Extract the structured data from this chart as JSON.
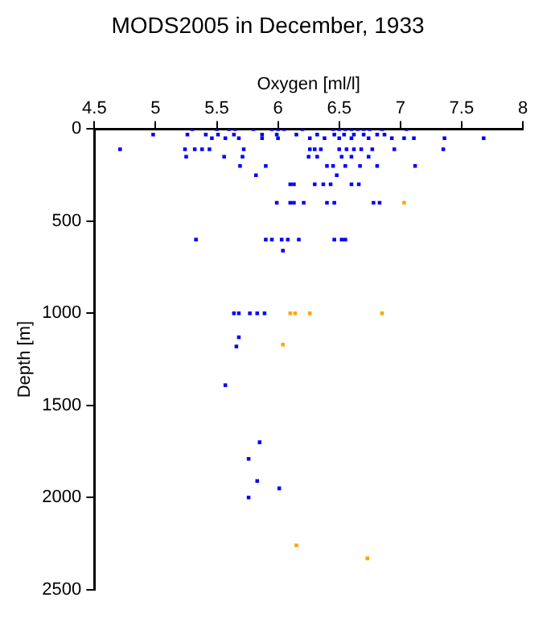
{
  "chart_data": {
    "type": "scatter",
    "title": "MODS2005 in December, 1933",
    "xlabel": "Oxygen [ml/l]",
    "ylabel": "Depth [m]",
    "xlim": [
      4.5,
      8
    ],
    "xticks": [
      4.5,
      5,
      5.5,
      6,
      6.5,
      7,
      7.5,
      8
    ],
    "ylim": [
      2500,
      0
    ],
    "yticks": [
      0,
      500,
      1000,
      1500,
      2000,
      2500
    ],
    "grid": false,
    "legend": false,
    "marker": "square",
    "series": [
      {
        "color": "#0000ff",
        "x": [
          5.3,
          5.5,
          5.6,
          5.65,
          5.8,
          5.95,
          6.0,
          6.05,
          6.2,
          6.45,
          6.5,
          6.55,
          6.6,
          6.65,
          6.7,
          6.75,
          6.85,
          7.05,
          4.98,
          5.26,
          5.41,
          5.51,
          5.64,
          5.87,
          5.99,
          6.15,
          6.32,
          6.46,
          6.54,
          6.62,
          6.7,
          6.81,
          6.87,
          5.46,
          5.57,
          5.68,
          5.87,
          6.0,
          6.26,
          6.38,
          6.5,
          6.6,
          6.74,
          6.93,
          7.03,
          7.11,
          7.36,
          7.68,
          4.71,
          5.24,
          5.32,
          5.38,
          5.44,
          5.72,
          6.26,
          6.3,
          6.35,
          6.5,
          6.56,
          6.62,
          6.68,
          6.77,
          6.95,
          7.35,
          5.25,
          5.56,
          5.71,
          6.25,
          6.32,
          6.52,
          6.6,
          6.74,
          5.69,
          5.9,
          6.4,
          6.45,
          6.55,
          6.67,
          6.81,
          7.12,
          5.82,
          6.48,
          6.1,
          6.13,
          6.3,
          6.37,
          6.43,
          6.6,
          6.66,
          5.99,
          6.1,
          6.13,
          6.21,
          6.4,
          6.46,
          6.78,
          6.83,
          5.33,
          5.9,
          5.95,
          6.03,
          6.08,
          6.17,
          6.46,
          6.52,
          6.55,
          6.04,
          5.64,
          5.68,
          5.77,
          5.83,
          5.89,
          5.68,
          5.66,
          5.57,
          5.85,
          5.76,
          5.83,
          6.01,
          5.76
        ],
        "values": [
          0,
          0,
          0,
          0,
          0,
          0,
          0,
          0,
          0,
          0,
          0,
          0,
          0,
          0,
          0,
          0,
          0,
          0,
          30,
          30,
          30,
          30,
          30,
          30,
          30,
          30,
          30,
          30,
          30,
          30,
          30,
          30,
          30,
          50,
          50,
          50,
          50,
          50,
          50,
          50,
          50,
          50,
          50,
          50,
          50,
          50,
          50,
          50,
          110,
          110,
          110,
          110,
          110,
          110,
          110,
          110,
          110,
          110,
          110,
          110,
          110,
          110,
          110,
          110,
          150,
          150,
          150,
          150,
          150,
          150,
          150,
          150,
          200,
          200,
          200,
          200,
          200,
          200,
          200,
          200,
          250,
          250,
          300,
          300,
          300,
          300,
          300,
          300,
          300,
          400,
          400,
          400,
          400,
          400,
          400,
          400,
          400,
          600,
          600,
          600,
          600,
          600,
          600,
          600,
          600,
          600,
          660,
          1000,
          1000,
          1000,
          1000,
          1000,
          1130,
          1180,
          1390,
          1700,
          1790,
          1910,
          1950,
          2000
        ]
      },
      {
        "color": "#ffa500",
        "x": [
          7.03,
          6.1,
          6.14,
          6.26,
          6.85,
          6.04,
          6.15,
          6.73
        ],
        "values": [
          400,
          1000,
          1000,
          1000,
          1000,
          1170,
          2260,
          2330
        ]
      }
    ]
  }
}
